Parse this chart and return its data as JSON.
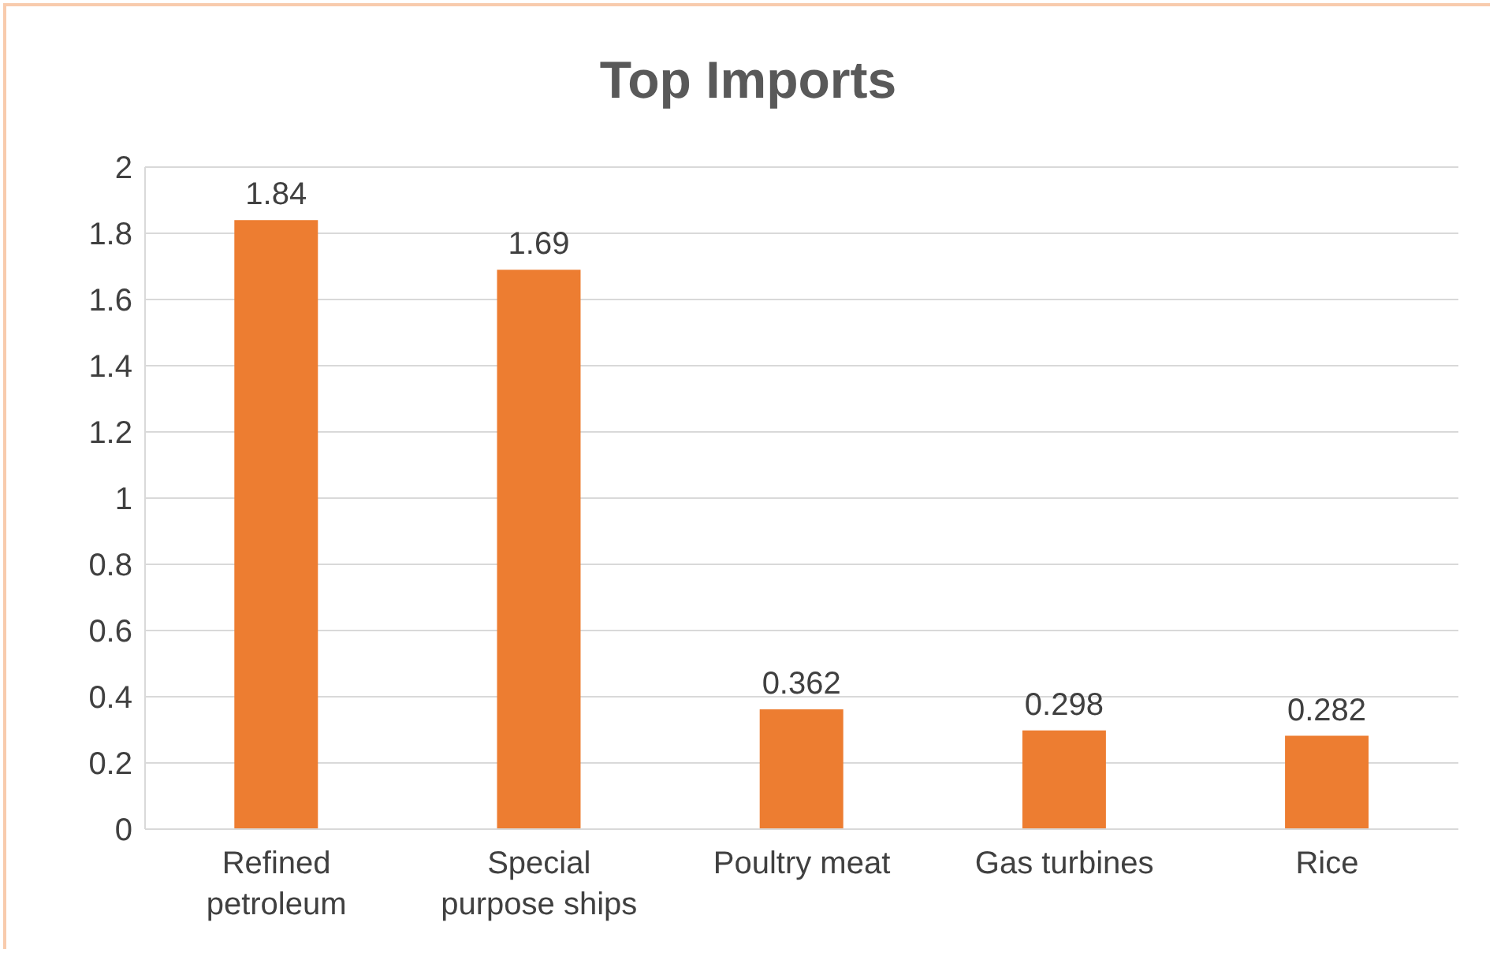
{
  "chart_data": {
    "type": "bar",
    "title": "Top Imports",
    "categories": [
      "Refined petroleum",
      "Special purpose ships",
      "Poultry meat",
      "Gas turbines",
      "Rice"
    ],
    "values": [
      1.84,
      1.69,
      0.362,
      0.298,
      0.282
    ],
    "color": "#ed7d31",
    "ylim": [
      0,
      2
    ],
    "yticks": [
      0,
      0.2,
      0.4,
      0.6,
      0.8,
      1,
      1.2,
      1.4,
      1.6,
      1.8,
      2
    ],
    "grid": "y",
    "data_labels": true
  }
}
